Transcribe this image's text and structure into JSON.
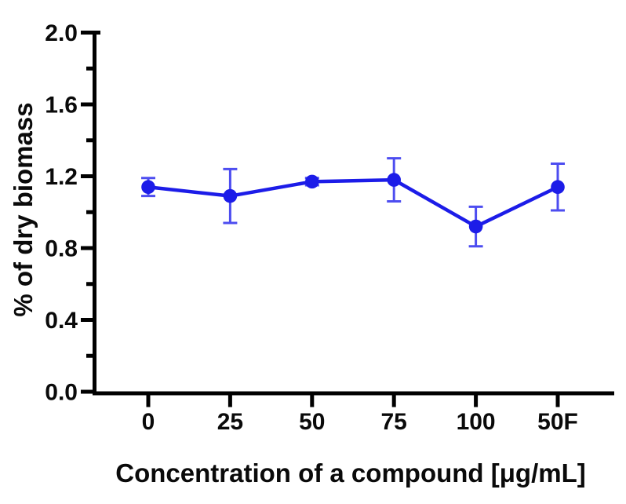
{
  "chart_data": {
    "type": "line",
    "title": "",
    "categories": [
      "0",
      "25",
      "50",
      "75",
      "100",
      "50F"
    ],
    "series": [
      {
        "name": "% of dry biomass",
        "values": [
          1.14,
          1.09,
          1.17,
          1.18,
          0.92,
          1.14
        ],
        "errors": [
          0.05,
          0.15,
          0.02,
          0.12,
          0.11,
          0.13
        ]
      }
    ],
    "xlabel": "Concentration of a compound [μg/mL]",
    "ylabel": "% of dry biomass",
    "ylim": [
      0.0,
      2.0
    ],
    "ytick_major_values": [
      0.0,
      0.4,
      0.8,
      1.2,
      1.6,
      2.0
    ],
    "ytick_labels": [
      "0.0",
      "0.4",
      "0.8",
      "1.2",
      "1.6",
      "2.0"
    ],
    "ytick_minor_values": [
      0.2,
      0.6,
      1.0,
      1.4,
      1.8
    ],
    "grid": false,
    "legend": "none",
    "marker": "circle",
    "colors": {
      "line": "#1c1ce8",
      "marker": "#1c1ce8",
      "error_bar": "#4d4df0",
      "axis": "#000000",
      "text": "#0a0a0a",
      "background": "#ffffff"
    }
  }
}
